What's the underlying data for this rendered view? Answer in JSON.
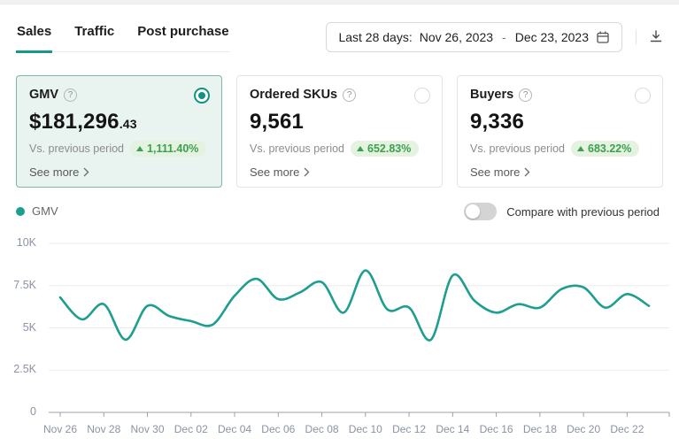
{
  "colors": {
    "accent": "#1e9e8e",
    "positive": "#3d9f4f",
    "positive_bg": "#e4f2e0",
    "selected_card_bg": "#e9f3ef"
  },
  "icons": {
    "help_glyph": "?"
  },
  "tabs": {
    "items": [
      {
        "label": "Sales",
        "active": true
      },
      {
        "label": "Traffic",
        "active": false
      },
      {
        "label": "Post purchase",
        "active": false
      }
    ]
  },
  "toolbar": {
    "date_range": {
      "prefix": "Last 28 days:",
      "start": "Nov 26, 2023",
      "separator": "-",
      "end": "Dec 23, 2023"
    }
  },
  "cards": [
    {
      "title": "GMV",
      "value_main": "$181,296",
      "value_fraction": ".43",
      "vs_label": "Vs. previous period",
      "change": "1,111.40%",
      "see_more_label": "See more",
      "selected": true
    },
    {
      "title": "Ordered SKUs",
      "value_main": "9,561",
      "value_fraction": "",
      "vs_label": "Vs. previous period",
      "change": "652.83%",
      "see_more_label": "See more",
      "selected": false
    },
    {
      "title": "Buyers",
      "value_main": "9,336",
      "value_fraction": "",
      "vs_label": "Vs. previous period",
      "change": "683.22%",
      "see_more_label": "See more",
      "selected": false
    }
  ],
  "legend": {
    "label": "GMV"
  },
  "compare_toggle": {
    "label": "Compare with previous period",
    "on": false
  },
  "chart_data": {
    "type": "line",
    "title": "",
    "xlabel": "",
    "ylabel": "",
    "ylim": [
      0,
      10000
    ],
    "grid": true,
    "legend_position": "top-left",
    "y_ticks": [
      0,
      2500,
      5000,
      7500,
      10000
    ],
    "y_tick_labels": [
      "0",
      "2.5K",
      "5K",
      "7.5K",
      "10K"
    ],
    "x_tick_labels": [
      "Nov 26",
      "Nov 28",
      "Nov 30",
      "Dec 02",
      "Dec 04",
      "Dec 06",
      "Dec 08",
      "Dec 10",
      "Dec 12",
      "Dec 14",
      "Dec 16",
      "Dec 18",
      "Dec 20",
      "Dec 22"
    ],
    "x_dates": [
      "Nov 26",
      "Nov 27",
      "Nov 28",
      "Nov 29",
      "Nov 30",
      "Dec 01",
      "Dec 02",
      "Dec 03",
      "Dec 04",
      "Dec 05",
      "Dec 06",
      "Dec 07",
      "Dec 08",
      "Dec 09",
      "Dec 10",
      "Dec 11",
      "Dec 12",
      "Dec 13",
      "Dec 14",
      "Dec 15",
      "Dec 16",
      "Dec 17",
      "Dec 18",
      "Dec 19",
      "Dec 20",
      "Dec 21",
      "Dec 22",
      "Dec 23"
    ],
    "series": [
      {
        "name": "GMV",
        "color": "#1e9e8e",
        "values": [
          6800,
          5500,
          6400,
          4300,
          6300,
          5700,
          5400,
          5200,
          6900,
          7900,
          6700,
          7100,
          7700,
          5900,
          8400,
          6100,
          6200,
          4300,
          8100,
          6600,
          5900,
          6400,
          6200,
          7300,
          7400,
          6200,
          7000,
          6300
        ]
      }
    ]
  }
}
